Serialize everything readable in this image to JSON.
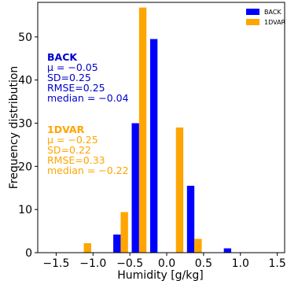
{
  "chart_data": {
    "type": "bar",
    "xlabel": "Humidity [g/kg]",
    "ylabel": "Frequency distribution",
    "xlim": [
      -1.75,
      1.6
    ],
    "ylim": [
      0,
      58
    ],
    "xticks": [
      -1.5,
      -1.0,
      -0.5,
      0.0,
      0.5,
      1.0,
      1.5
    ],
    "xtick_labels": [
      "−1.5",
      "−1.0",
      "−0.5",
      "0.0",
      "0.5",
      "1.0",
      "1.5"
    ],
    "yticks": [
      0,
      10,
      20,
      30,
      40,
      50
    ],
    "ytick_labels": [
      "0",
      "10",
      "20",
      "30",
      "40",
      "50"
    ],
    "legend_position": "top-right",
    "series": [
      {
        "name": "BACK",
        "color": "#0000ff",
        "x": [
          -1.125,
          -0.625,
          -0.375,
          -0.125,
          0.125,
          0.375,
          0.875
        ],
        "values": [
          0,
          4.2,
          30,
          49.5,
          0,
          15.5,
          1
        ]
      },
      {
        "name": "1DVAR",
        "color": "#ffa500",
        "x": [
          -1.125,
          -0.625,
          -0.375,
          -0.125,
          0.125,
          0.375,
          0.875
        ],
        "values": [
          2.2,
          9.4,
          56.8,
          0,
          29,
          3.2,
          0
        ]
      }
    ],
    "annotations": [
      {
        "series": "BACK",
        "color": "#0000cc",
        "title": "BACK",
        "lines": [
          "μ = −0.05",
          "SD=0.25",
          "RMSE=0.25",
          "median = −0.04"
        ]
      },
      {
        "series": "1DVAR",
        "color": "#ffa500",
        "title": "1DVAR",
        "lines": [
          "μ = −0.25",
          "SD=0.22",
          "RMSE=0.33",
          "median = −0.22"
        ]
      }
    ]
  }
}
